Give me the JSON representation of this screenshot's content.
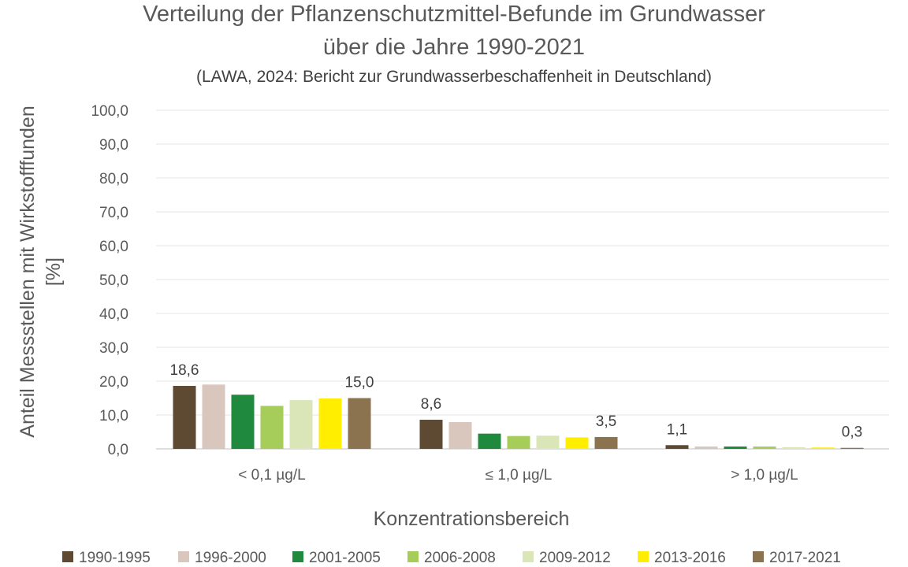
{
  "chart_data": {
    "type": "bar",
    "title_line1": "Verteilung der Pflanzenschutzmittel-Befunde im Grundwasser",
    "title_line2": "über die Jahre 1990-2021",
    "subtitle": "(LAWA, 2024: Bericht zur Grundwasserbeschaffenheit in Deutschland)",
    "ylabel_line1": "Anteil Messstellen mit Wirkstofffunden",
    "ylabel_line2": "[%]",
    "xlabel": "Konzentrationsbereich",
    "ylim": [
      0,
      100
    ],
    "yticks": [
      "0,0",
      "10,0",
      "20,0",
      "30,0",
      "40,0",
      "50,0",
      "60,0",
      "70,0",
      "80,0",
      "90,0",
      "100,0"
    ],
    "grid": true,
    "legend_position": "bottom",
    "categories": [
      "< 0,1 µg/L",
      "≤ 1,0 µg/L",
      "> 1,0 µg/L"
    ],
    "series": [
      {
        "name": "1990-1995",
        "color": "#5e4a32",
        "values": [
          18.6,
          8.6,
          1.1
        ]
      },
      {
        "name": "1996-2000",
        "color": "#d9c7bd",
        "values": [
          19.0,
          7.9,
          0.7
        ]
      },
      {
        "name": "2001-2005",
        "color": "#1f8a3e",
        "values": [
          16.0,
          4.5,
          0.7
        ]
      },
      {
        "name": "2006-2008",
        "color": "#a6cc5a",
        "values": [
          12.7,
          3.8,
          0.7
        ]
      },
      {
        "name": "2009-2012",
        "color": "#dbe6b8",
        "values": [
          14.4,
          3.9,
          0.5
        ]
      },
      {
        "name": "2013-2016",
        "color": "#ffee00",
        "values": [
          14.9,
          3.4,
          0.4
        ]
      },
      {
        "name": "2017-2021",
        "color": "#8c7350",
        "values": [
          15.0,
          3.5,
          0.3
        ]
      }
    ],
    "data_labels": [
      {
        "series": 0,
        "category": 0,
        "text": "18,6"
      },
      {
        "series": 6,
        "category": 0,
        "text": "15,0"
      },
      {
        "series": 0,
        "category": 1,
        "text": "8,6"
      },
      {
        "series": 6,
        "category": 1,
        "text": "3,5"
      },
      {
        "series": 0,
        "category": 2,
        "text": "1,1"
      },
      {
        "series": 6,
        "category": 2,
        "text": "0,3"
      }
    ]
  }
}
